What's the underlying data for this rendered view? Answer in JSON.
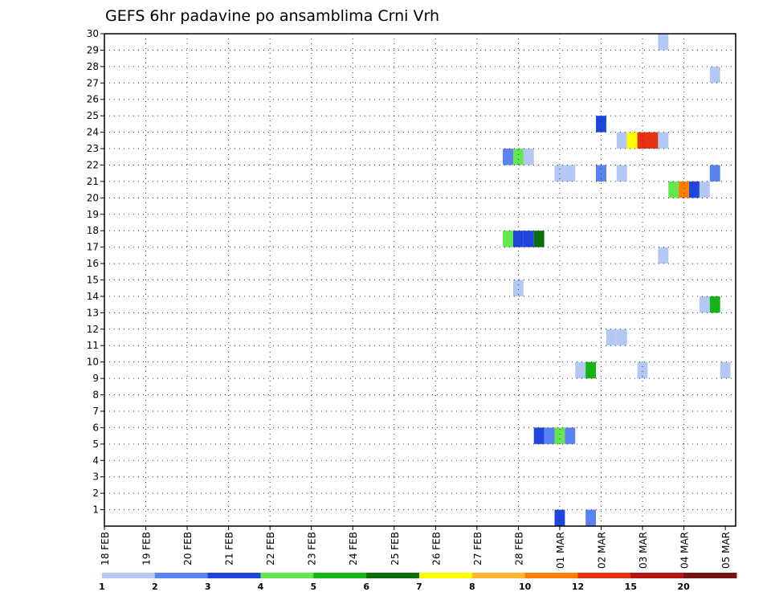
{
  "chart_data": {
    "type": "heatmap",
    "title": "GEFS 6hr padavine po ansamblima Crni Vrh",
    "xlabel": "",
    "ylabel": "",
    "x_ticks": [
      "18 FEB",
      "19 FEB",
      "20 FEB",
      "21 FEB",
      "22 FEB",
      "23 FEB",
      "24 FEB",
      "25 FEB",
      "26 FEB",
      "27 FEB",
      "28 FEB",
      "01 MAR",
      "02 MAR",
      "03 MAR",
      "04 MAR",
      "05 MAR"
    ],
    "x_range_days": [
      0,
      15.25
    ],
    "y_ticks": [
      1,
      2,
      3,
      4,
      5,
      6,
      7,
      8,
      9,
      10,
      11,
      12,
      13,
      14,
      15,
      16,
      17,
      18,
      19,
      20,
      21,
      22,
      23,
      24,
      25,
      26,
      27,
      28,
      29,
      30
    ],
    "y_range": [
      0,
      30
    ],
    "grid": true,
    "colorbar": {
      "levels": [
        "1",
        "2",
        "3",
        "4",
        "5",
        "6",
        "7",
        "8",
        "10",
        "12",
        "15",
        "20"
      ],
      "colors": [
        "#b4c8f5",
        "#5a82f0",
        "#1e46dc",
        "#64e650",
        "#14b414",
        "#0a6e0a",
        "#ffff00",
        "#ffb432",
        "#ff7d00",
        "#e63214",
        "#b41414",
        "#781414"
      ]
    },
    "cells": [
      {
        "member": 0,
        "time": "01 MAR 00Z",
        "color": 2
      },
      {
        "member": 0,
        "time": "01 MAR 18Z",
        "color": 1
      },
      {
        "member": 5,
        "time": "28 FEB 12Z",
        "color": 2
      },
      {
        "member": 5,
        "time": "28 FEB 18Z",
        "color": 1
      },
      {
        "member": 5,
        "time": "01 MAR 00Z",
        "color": 3
      },
      {
        "member": 5,
        "time": "01 MAR 06Z",
        "color": 1
      },
      {
        "member": 9,
        "time": "01 MAR 12Z",
        "color": 0
      },
      {
        "member": 9,
        "time": "01 MAR 18Z",
        "color": 4
      },
      {
        "member": 9,
        "time": "03 MAR 00Z",
        "color": 0
      },
      {
        "member": 9,
        "time": "05 MAR 00Z",
        "color": 0
      },
      {
        "member": 11,
        "time": "02 MAR 06Z",
        "color": 0
      },
      {
        "member": 11,
        "time": "02 MAR 12Z",
        "color": 0
      },
      {
        "member": 13,
        "time": "04 MAR 12Z",
        "color": 0
      },
      {
        "member": 13,
        "time": "04 MAR 18Z",
        "color": 4
      },
      {
        "member": 14,
        "time": "28 FEB 00Z",
        "color": 0
      },
      {
        "member": 16,
        "time": "03 MAR 12Z",
        "color": 0
      },
      {
        "member": 17,
        "time": "27 FEB 18Z",
        "color": 3
      },
      {
        "member": 17,
        "time": "28 FEB 00Z",
        "color": 2
      },
      {
        "member": 17,
        "time": "28 FEB 06Z",
        "color": 2
      },
      {
        "member": 17,
        "time": "28 FEB 12Z",
        "color": 5
      },
      {
        "member": 20,
        "time": "03 MAR 18Z",
        "color": 3
      },
      {
        "member": 20,
        "time": "04 MAR 00Z",
        "color": 8
      },
      {
        "member": 20,
        "time": "04 MAR 06Z",
        "color": 2
      },
      {
        "member": 20,
        "time": "04 MAR 12Z",
        "color": 0
      },
      {
        "member": 21,
        "time": "01 MAR 00Z",
        "color": 0
      },
      {
        "member": 21,
        "time": "01 MAR 06Z",
        "color": 0
      },
      {
        "member": 21,
        "time": "02 MAR 00Z",
        "color": 1
      },
      {
        "member": 21,
        "time": "02 MAR 12Z",
        "color": 0
      },
      {
        "member": 21,
        "time": "04 MAR 18Z",
        "color": 1
      },
      {
        "member": 22,
        "time": "27 FEB 18Z",
        "color": 1
      },
      {
        "member": 22,
        "time": "28 FEB 00Z",
        "color": 3
      },
      {
        "member": 22,
        "time": "28 FEB 06Z",
        "color": 0
      },
      {
        "member": 23,
        "time": "02 MAR 12Z",
        "color": 0
      },
      {
        "member": 23,
        "time": "02 MAR 18Z",
        "color": 6
      },
      {
        "member": 23,
        "time": "03 MAR 00Z",
        "color": 9
      },
      {
        "member": 23,
        "time": "03 MAR 06Z",
        "color": 9
      },
      {
        "member": 23,
        "time": "03 MAR 12Z",
        "color": 0
      },
      {
        "member": 24,
        "time": "02 MAR 00Z",
        "color": 2
      },
      {
        "member": 27,
        "time": "04 MAR 18Z",
        "color": 0
      },
      {
        "member": 29,
        "time": "03 MAR 12Z",
        "color": 0
      }
    ]
  }
}
